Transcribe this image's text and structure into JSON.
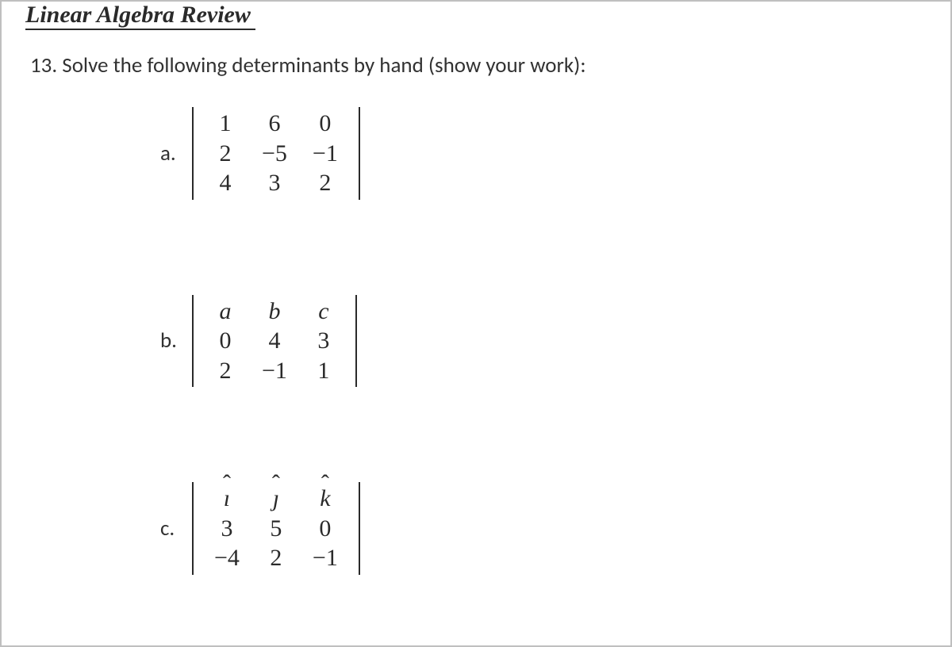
{
  "title": "Linear Algebra Review",
  "question": "13. Solve the following determinants by hand (show your work):",
  "problems": {
    "a": {
      "label": "a.",
      "matrix": [
        [
          "1",
          "6",
          "0"
        ],
        [
          "2",
          "−5",
          "−1"
        ],
        [
          "4",
          "3",
          "2"
        ]
      ]
    },
    "b": {
      "label": "b.",
      "matrix": [
        [
          "a",
          "b",
          "c"
        ],
        [
          "0",
          "4",
          "3"
        ],
        [
          "2",
          "−1",
          "1"
        ]
      ],
      "italicRows": [
        0
      ]
    },
    "c": {
      "label": "c.",
      "matrix": [
        [
          "ı",
          "ȷ",
          "k"
        ],
        [
          "3",
          "5",
          "0"
        ],
        [
          "−4",
          "2",
          "−1"
        ]
      ],
      "hatRows": [
        0
      ]
    }
  },
  "style": {
    "text_color": "#2a2a2a",
    "background_color": "#ffffff",
    "border_color": "#bfbfbf",
    "title_fontsize": 30,
    "question_fontsize": 27,
    "matrix_fontsize": 30
  }
}
